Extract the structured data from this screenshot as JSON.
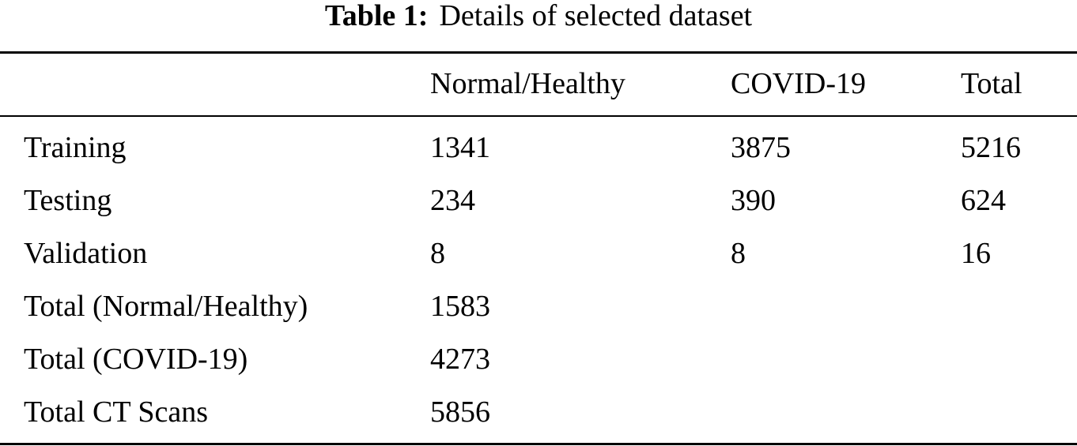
{
  "caption": {
    "label": "Table 1:",
    "text": "Details of selected dataset"
  },
  "table": {
    "headers": [
      "",
      "Normal/Healthy",
      "COVID-19",
      "Total"
    ],
    "rows": [
      [
        "Training",
        "1341",
        "3875",
        "5216"
      ],
      [
        "Testing",
        "234",
        "390",
        "624"
      ],
      [
        "Validation",
        "8",
        "8",
        "16"
      ],
      [
        "Total (Normal/Healthy)",
        "1583",
        "",
        ""
      ],
      [
        "Total (COVID-19)",
        "4273",
        "",
        ""
      ],
      [
        "Total CT Scans",
        "5856",
        "",
        ""
      ]
    ]
  }
}
